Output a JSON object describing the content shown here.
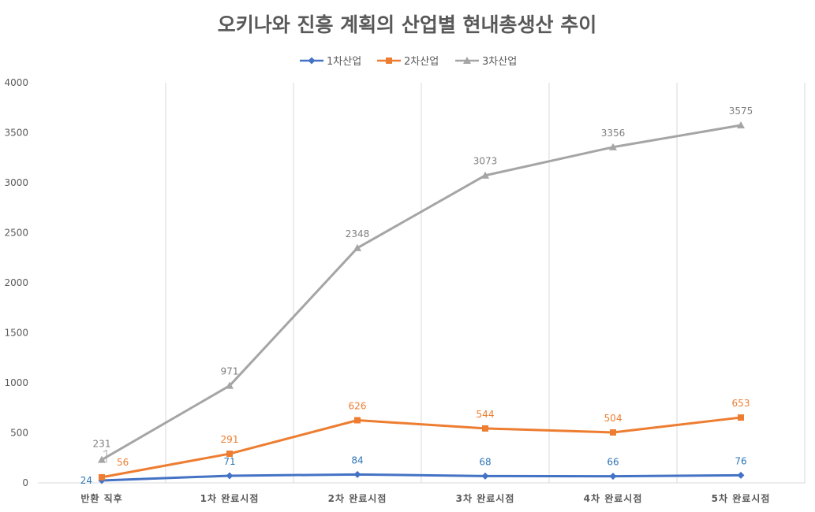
{
  "chart_data": {
    "type": "line",
    "title": "오키나와 진흥 계획의 산업별 현내총생산 추이",
    "categories": [
      "반환 직후",
      "1차 완료시점",
      "2차 완료시점",
      "3차 완료시점",
      "4차 완료시점",
      "5차 완료시점"
    ],
    "series": [
      {
        "name": "1차산업",
        "values": [
          24,
          71,
          84,
          68,
          66,
          76
        ],
        "color": "#4472c4",
        "marker": "diamond",
        "label_color": "#2e75b6"
      },
      {
        "name": "2차산업",
        "values": [
          56,
          291,
          626,
          544,
          504,
          653
        ],
        "color": "#ed7d31",
        "marker": "square",
        "label_color": "#ed7d31"
      },
      {
        "name": "3차산업",
        "values": [
          231,
          971,
          2348,
          3073,
          3356,
          3575
        ],
        "color": "#a5a5a5",
        "marker": "triangle",
        "label_color": "#7f7f7f"
      }
    ],
    "xlabel": "",
    "ylabel": "",
    "ylim": [
      0,
      4000
    ],
    "yticks": [
      0,
      500,
      1000,
      1500,
      2000,
      2500,
      3000,
      3500,
      4000
    ],
    "grid": "vertical",
    "legend": "top-center",
    "data_labels": true
  }
}
